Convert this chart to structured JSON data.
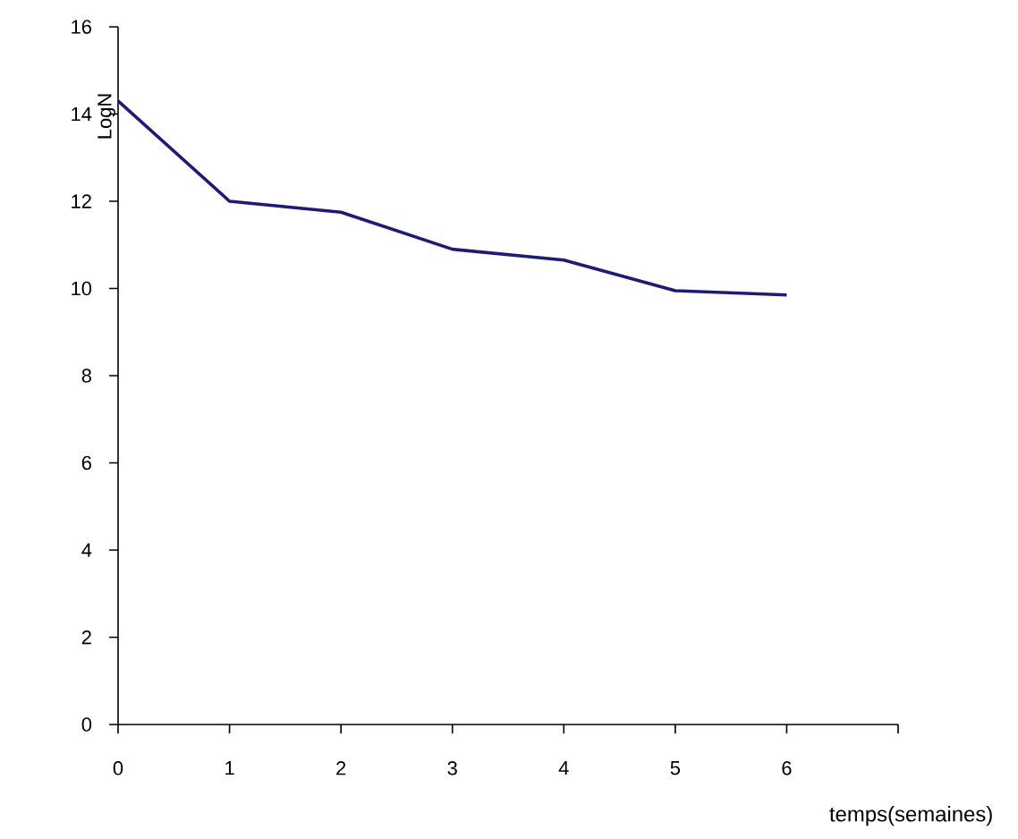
{
  "chart_data": {
    "type": "line",
    "xlabel": "temps(semaines)",
    "ylabel": "LogN",
    "x": [
      0,
      1,
      2,
      3,
      4,
      5,
      6
    ],
    "series": [
      {
        "color": "#1a1a80",
        "values": [
          14.3,
          12.0,
          11.75,
          10.9,
          10.65,
          9.95,
          9.85
        ]
      }
    ],
    "xlim": [
      0,
      7
    ],
    "xticks": [
      0,
      1,
      2,
      3,
      4,
      5,
      6,
      {
        "value": 7,
        "label": null
      }
    ],
    "ylim": [
      0,
      16
    ],
    "yticks": [
      0,
      2,
      4,
      6,
      8,
      10,
      12,
      14,
      16
    ],
    "grid": false,
    "marker": "none",
    "line_style": "solid"
  }
}
